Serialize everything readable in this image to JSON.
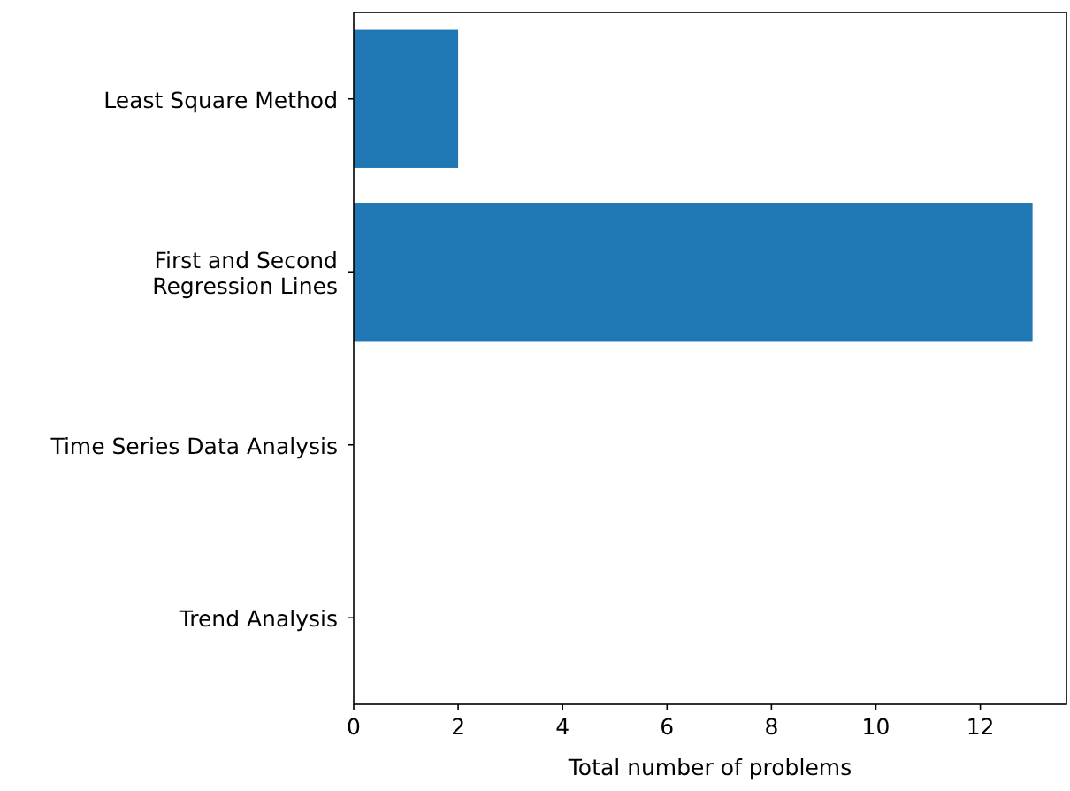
{
  "chart_data": {
    "type": "bar",
    "orientation": "horizontal",
    "xlabel": "Total number of problems",
    "categories": [
      "Least Square Method",
      "First and Second Regression Lines",
      "Time Series Data Analysis",
      "Trend Analysis"
    ],
    "values": [
      2,
      13,
      0,
      0
    ],
    "color": "#1f77b4",
    "xlim": [
      0,
      13.65
    ],
    "xticks": [
      0,
      2,
      4,
      6,
      8,
      10,
      12
    ],
    "grid": false
  }
}
